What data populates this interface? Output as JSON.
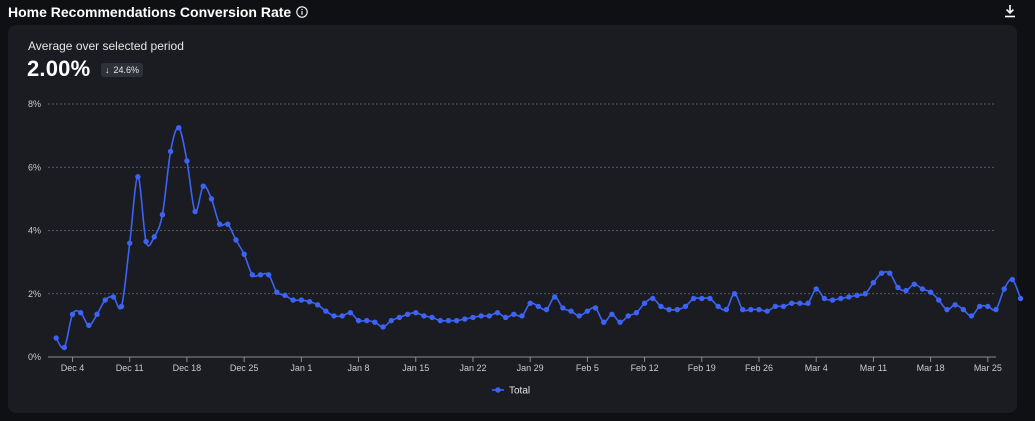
{
  "header": {
    "title": "Home Recommendations Conversion Rate",
    "info_icon": "info-icon",
    "download_icon": "download-icon"
  },
  "summary": {
    "label": "Average over selected period",
    "value": "2.00%",
    "delta": "24.6%",
    "delta_direction": "down"
  },
  "colors": {
    "line": "#3d63f5",
    "background": "#0f1013",
    "card": "#1b1c21",
    "grid": "#6b6d75"
  },
  "chart_data": {
    "type": "line",
    "xlabel": "",
    "ylabel": "",
    "ylim": [
      0,
      8
    ],
    "y_ticks": [
      "0%",
      "2%",
      "4%",
      "6%",
      "8%"
    ],
    "x_ticks": [
      "Dec 4",
      "Dec 11",
      "Dec 18",
      "Dec 25",
      "Jan 1",
      "Jan 8",
      "Jan 15",
      "Jan 22",
      "Jan 29",
      "Feb 5",
      "Feb 12",
      "Feb 19",
      "Feb 26",
      "Mar 4",
      "Mar 11",
      "Mar 18",
      "Mar 25"
    ],
    "x_range": [
      "2023-12-01",
      "2024-03-26"
    ],
    "grid": true,
    "legend": "bottom-center",
    "series": [
      {
        "name": "Total",
        "x_start": "2023-12-02",
        "step": "1 day",
        "values": [
          0.6,
          0.3,
          1.35,
          1.4,
          1.0,
          1.35,
          1.8,
          1.9,
          1.6,
          3.6,
          5.7,
          3.65,
          3.8,
          4.5,
          6.5,
          7.25,
          6.2,
          4.6,
          5.4,
          5.0,
          4.2,
          4.2,
          3.7,
          3.25,
          2.6,
          2.6,
          2.6,
          2.05,
          1.95,
          1.8,
          1.8,
          1.75,
          1.65,
          1.45,
          1.3,
          1.3,
          1.4,
          1.15,
          1.15,
          1.1,
          0.95,
          1.15,
          1.25,
          1.35,
          1.4,
          1.3,
          1.25,
          1.15,
          1.15,
          1.15,
          1.2,
          1.25,
          1.3,
          1.3,
          1.4,
          1.25,
          1.35,
          1.3,
          1.7,
          1.6,
          1.5,
          1.9,
          1.55,
          1.45,
          1.3,
          1.45,
          1.55,
          1.1,
          1.35,
          1.1,
          1.3,
          1.4,
          1.7,
          1.85,
          1.6,
          1.5,
          1.5,
          1.6,
          1.85,
          1.85,
          1.85,
          1.6,
          1.5,
          2.0,
          1.5,
          1.5,
          1.5,
          1.45,
          1.6,
          1.6,
          1.7,
          1.7,
          1.7,
          2.15,
          1.85,
          1.8,
          1.85,
          1.9,
          1.95,
          2.0,
          2.35,
          2.65,
          2.65,
          2.2,
          2.1,
          2.3,
          2.15,
          2.05,
          1.8,
          1.5,
          1.65,
          1.5,
          1.3,
          1.6,
          1.6,
          1.5,
          2.15,
          2.45,
          1.85
        ]
      }
    ]
  }
}
